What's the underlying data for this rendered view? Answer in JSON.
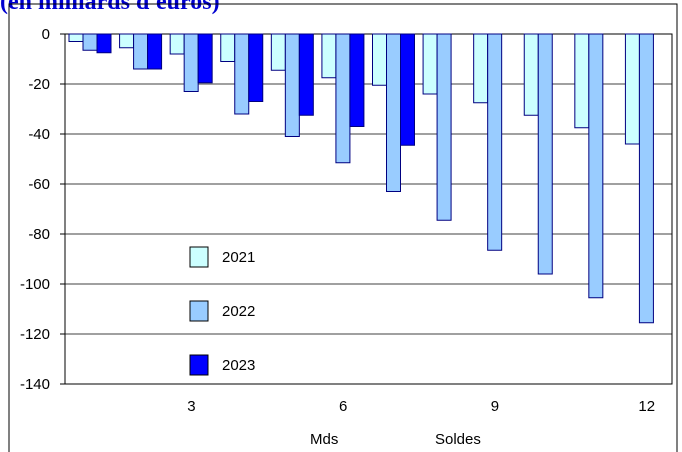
{
  "title": "(en milliards d'euros)",
  "chart_data": {
    "type": "bar",
    "x": [
      1,
      2,
      3,
      4,
      5,
      6,
      7,
      8,
      9,
      10,
      11,
      12
    ],
    "x_tick_labels": [
      "3",
      "6",
      "9",
      "12"
    ],
    "x_tick_positions": [
      3,
      6,
      9,
      12
    ],
    "series": [
      {
        "name": "2021",
        "color": "#ccffff",
        "values": [
          -3,
          -5.5,
          -8,
          -11,
          -14.5,
          -17.5,
          -20.5,
          -24,
          -27.5,
          -32.5,
          -37.5,
          -44
        ]
      },
      {
        "name": "2022",
        "color": "#99ccff",
        "values": [
          -6.5,
          -14,
          -23,
          -32,
          -41,
          -51.5,
          -63,
          -74.5,
          -86.5,
          -96,
          -105.5,
          -115.5
        ]
      },
      {
        "name": "2023",
        "color": "#0000ff",
        "values": [
          -7.5,
          -14,
          -19.5,
          -27,
          -32.5,
          -37,
          -44.5,
          null,
          null,
          null,
          null,
          null
        ]
      }
    ],
    "ylim": [
      -140,
      0
    ],
    "y_ticks": [
      0,
      -20,
      -40,
      -60,
      -80,
      -100,
      -120,
      -140
    ],
    "grid": true,
    "legend_position": "lower-left inside plot",
    "annotations": [
      "Mds",
      "Soldes"
    ]
  }
}
